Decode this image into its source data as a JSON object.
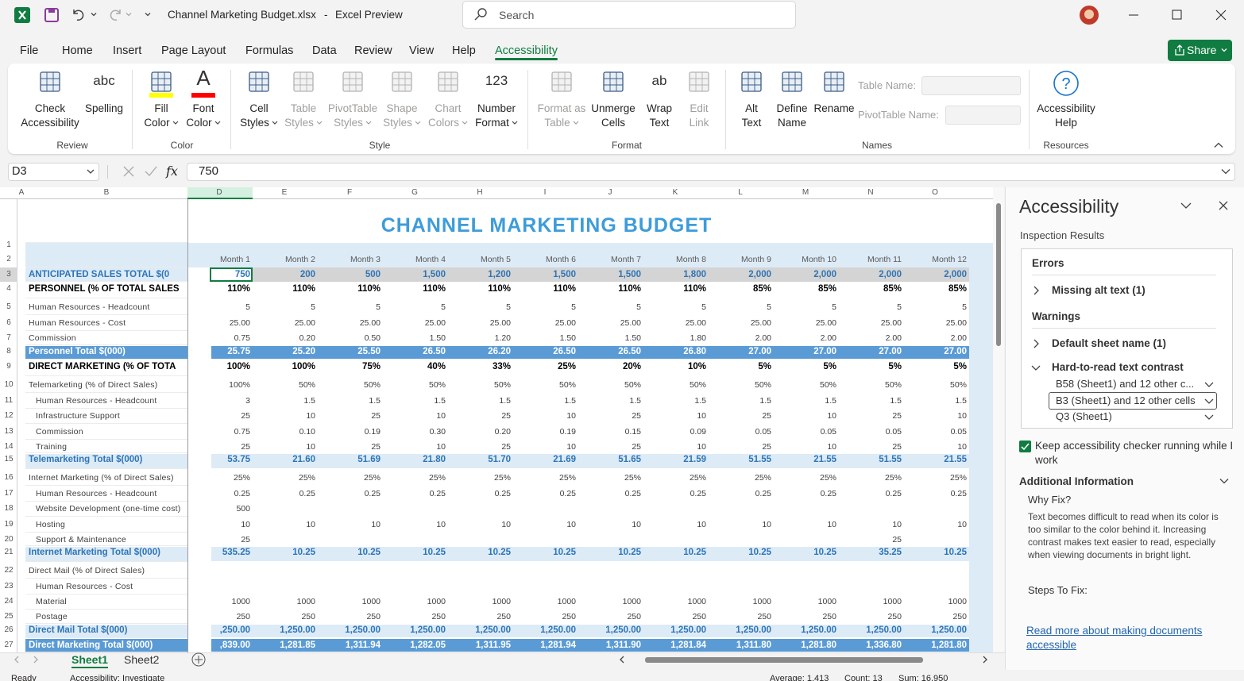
{
  "title_bar": {
    "file_name": "Channel Marketing Budget.xlsx",
    "separator": "-",
    "app_name": "Excel Preview",
    "search": "Search"
  },
  "menu": {
    "tabs": [
      "File",
      "Home",
      "Insert",
      "Page Layout",
      "Formulas",
      "Data",
      "Review",
      "View",
      "Help",
      "Accessibility"
    ],
    "active": 9,
    "share": "Share"
  },
  "ribbon": {
    "groups": [
      {
        "label": "Review",
        "buttons": [
          {
            "lines": [
              "Check",
              "Accessibility"
            ]
          },
          {
            "lines": [
              "Spelling"
            ],
            "icon_text": "abc"
          }
        ]
      },
      {
        "label": "Color",
        "buttons": [
          {
            "lines": [
              "Fill",
              "Color"
            ],
            "menu": true,
            "accent": "#ffff00"
          },
          {
            "lines": [
              "Font",
              "Color"
            ],
            "menu": true,
            "accent": "#ff0000",
            "icon_text": "A"
          }
        ]
      },
      {
        "label": "Style",
        "buttons": [
          {
            "lines": [
              "Cell",
              "Styles"
            ],
            "menu": true
          },
          {
            "lines": [
              "Table",
              "Styles"
            ],
            "menu": true,
            "disabled": true
          },
          {
            "lines": [
              "PivotTable",
              "Styles"
            ],
            "menu": true,
            "disabled": true
          },
          {
            "lines": [
              "Shape",
              "Styles"
            ],
            "menu": true,
            "disabled": true
          },
          {
            "lines": [
              "Chart",
              "Colors"
            ],
            "menu": true,
            "disabled": true
          },
          {
            "lines": [
              "Number",
              "Format"
            ],
            "menu": true,
            "icon_text": "123"
          }
        ]
      },
      {
        "label": "Format",
        "buttons": [
          {
            "lines": [
              "Format as",
              "Table"
            ],
            "menu": true,
            "disabled": true
          },
          {
            "lines": [
              "Unmerge",
              "Cells"
            ]
          },
          {
            "lines": [
              "Wrap",
              "Text"
            ],
            "icon_text": "ab"
          },
          {
            "lines": [
              "Edit",
              "Link"
            ],
            "disabled": true
          }
        ]
      },
      {
        "label": "Names",
        "buttons": [
          {
            "lines": [
              "Alt",
              "Text"
            ]
          },
          {
            "lines": [
              "Define",
              "Name"
            ]
          },
          {
            "lines": [
              "Rename"
            ]
          }
        ],
        "fields": [
          {
            "label": "Table Name:"
          },
          {
            "label": "PivotTable Name:"
          }
        ]
      },
      {
        "label": "Resources",
        "buttons": [
          {
            "lines": [
              "Accessibility",
              "Help"
            ],
            "icon_text": "?"
          }
        ]
      }
    ]
  },
  "formula_bar": {
    "name_box": "D3",
    "function_label": "fx",
    "formula": "750"
  },
  "sheet": {
    "column_headers": [
      "A",
      "B",
      "D",
      "E",
      "F",
      "G",
      "H",
      "I",
      "J",
      "K",
      "L",
      "M",
      "N",
      "O"
    ],
    "title": "CHANNEL MARKETING BUDGET",
    "rows": [
      {
        "n": 1,
        "style": "title",
        "label": null,
        "cells": []
      },
      {
        "n": 2,
        "style": "header",
        "label": null,
        "cells": [
          "Month 1",
          "Month 2",
          "Month 3",
          "Month 4",
          "Month 5",
          "Month 6",
          "Month 7",
          "Month 8",
          "Month 9",
          "Month 10",
          "Month 11",
          "Month 12"
        ]
      },
      {
        "n": 3,
        "style": "sales",
        "label": "ANTICIPATED SALES TOTAL $(0",
        "cells": [
          "750",
          "200",
          "500",
          "1,500",
          "1,200",
          "1,500",
          "1,500",
          "1,800",
          "2,000",
          "2,000",
          "2,000",
          "2,000"
        ]
      },
      {
        "n": 4,
        "style": "section",
        "label": "PERSONNEL (% OF TOTAL SALES",
        "cells": [
          "110%",
          "110%",
          "110%",
          "110%",
          "110%",
          "110%",
          "110%",
          "110%",
          "85%",
          "85%",
          "85%",
          "85%"
        ]
      },
      {
        "n": 5,
        "style": "item",
        "label": "Human Resources - Headcount",
        "cells": [
          "5",
          "5",
          "5",
          "5",
          "5",
          "5",
          "5",
          "5",
          "5",
          "5",
          "5",
          "5"
        ]
      },
      {
        "n": 6,
        "style": "item",
        "label": "Human Resources - Cost",
        "cells": [
          "25.00",
          "25.00",
          "25.00",
          "25.00",
          "25.00",
          "25.00",
          "25.00",
          "25.00",
          "25.00",
          "25.00",
          "25.00",
          "25.00"
        ]
      },
      {
        "n": 7,
        "style": "item",
        "label": "Commission",
        "cells": [
          "0.75",
          "0.20",
          "0.50",
          "1.50",
          "1.20",
          "1.50",
          "1.50",
          "1.80",
          "2.00",
          "2.00",
          "2.00",
          "2.00"
        ]
      },
      {
        "n": 8,
        "style": "total-dark",
        "label": "Personnel Total $(000)",
        "cells": [
          "25.75",
          "25.20",
          "25.50",
          "26.50",
          "26.20",
          "26.50",
          "26.50",
          "26.80",
          "27.00",
          "27.00",
          "27.00",
          "27.00"
        ]
      },
      {
        "n": 9,
        "style": "section",
        "label": "DIRECT MARKETING (% OF TOTA",
        "cells": [
          "100%",
          "100%",
          "75%",
          "40%",
          "33%",
          "25%",
          "20%",
          "10%",
          "5%",
          "5%",
          "5%",
          "5%"
        ]
      },
      {
        "n": 10,
        "style": "item",
        "label": "Telemarketing (% of Direct Sales)",
        "cells": [
          "100%",
          "50%",
          "50%",
          "50%",
          "50%",
          "50%",
          "50%",
          "50%",
          "50%",
          "50%",
          "50%",
          "50%"
        ]
      },
      {
        "n": 11,
        "style": "subitem",
        "label": "Human Resources - Headcount",
        "cells": [
          "3",
          "1.5",
          "1.5",
          "1.5",
          "1.5",
          "1.5",
          "1.5",
          "1.5",
          "1.5",
          "1.5",
          "1.5",
          "1.5"
        ]
      },
      {
        "n": 12,
        "style": "subitem",
        "label": "Infrastructure Support",
        "cells": [
          "25",
          "10",
          "25",
          "10",
          "25",
          "10",
          "25",
          "10",
          "25",
          "10",
          "25",
          "10"
        ]
      },
      {
        "n": 13,
        "style": "subitem",
        "label": "Commission",
        "cells": [
          "0.75",
          "0.10",
          "0.19",
          "0.30",
          "0.20",
          "0.19",
          "0.15",
          "0.09",
          "0.05",
          "0.05",
          "0.05",
          "0.05"
        ]
      },
      {
        "n": 14,
        "style": "subitem",
        "label": "Training",
        "cells": [
          "25",
          "10",
          "25",
          "10",
          "25",
          "10",
          "25",
          "10",
          "25",
          "10",
          "25",
          "10"
        ]
      },
      {
        "n": 15,
        "style": "total-light",
        "label": "Telemarketing Total $(000)",
        "cells": [
          "53.75",
          "21.60",
          "51.69",
          "21.80",
          "51.70",
          "21.69",
          "51.65",
          "21.59",
          "51.55",
          "21.55",
          "51.55",
          "21.55"
        ]
      },
      {
        "n": 16,
        "style": "item",
        "label": "Internet Marketing (% of Direct Sales)",
        "cells": [
          "25%",
          "25%",
          "25%",
          "25%",
          "25%",
          "25%",
          "25%",
          "25%",
          "25%",
          "25%",
          "25%",
          "25%"
        ]
      },
      {
        "n": 17,
        "style": "subitem",
        "label": "Human Resources - Headcount",
        "cells": [
          "0.25",
          "0.25",
          "0.25",
          "0.25",
          "0.25",
          "0.25",
          "0.25",
          "0.25",
          "0.25",
          "0.25",
          "0.25",
          "0.25"
        ]
      },
      {
        "n": 18,
        "style": "subitem",
        "label": "Website Development (one-time cost)",
        "cells": [
          "500",
          null,
          null,
          null,
          null,
          null,
          null,
          null,
          null,
          null,
          null,
          null
        ]
      },
      {
        "n": 19,
        "style": "subitem",
        "label": "Hosting",
        "cells": [
          "10",
          "10",
          "10",
          "10",
          "10",
          "10",
          "10",
          "10",
          "10",
          "10",
          "10",
          "10"
        ]
      },
      {
        "n": 20,
        "style": "subitem",
        "label": "Support & Maintenance",
        "cells": [
          "25",
          null,
          null,
          null,
          null,
          null,
          null,
          null,
          null,
          null,
          "25",
          null
        ]
      },
      {
        "n": 21,
        "style": "total-light",
        "label": "Internet Marketing Total $(000)",
        "cells": [
          "535.25",
          "10.25",
          "10.25",
          "10.25",
          "10.25",
          "10.25",
          "10.25",
          "10.25",
          "10.25",
          "10.25",
          "35.25",
          "10.25"
        ]
      },
      {
        "n": 22,
        "style": "item",
        "label": "Direct Mail (% of Direct Sales)",
        "cells": []
      },
      {
        "n": 23,
        "style": "subitem",
        "label": "Human Resources - Cost",
        "cells": []
      },
      {
        "n": 24,
        "style": "subitem",
        "label": "Material",
        "cells": [
          "1000",
          "1000",
          "1000",
          "1000",
          "1000",
          "1000",
          "1000",
          "1000",
          "1000",
          "1000",
          "1000",
          "1000"
        ]
      },
      {
        "n": 25,
        "style": "subitem",
        "label": "Postage",
        "cells": [
          "250",
          "250",
          "250",
          "250",
          "250",
          "250",
          "250",
          "250",
          "250",
          "250",
          "250",
          "250"
        ]
      },
      {
        "n": 26,
        "style": "total-light",
        "label": "Direct Mail Total $(000)",
        "cells": [
          ",250.00",
          "1,250.00",
          "1,250.00",
          "1,250.00",
          "1,250.00",
          "1,250.00",
          "1,250.00",
          "1,250.00",
          "1,250.00",
          "1,250.00",
          "1,250.00",
          "1,250.00"
        ]
      },
      {
        "n": 27,
        "style": "total-dark",
        "label": "Direct Marketing Total $(000)",
        "cells": [
          ",839.00",
          "1,281.85",
          "1,311.94",
          "1,282.05",
          "1,311.95",
          "1,281.94",
          "1,311.90",
          "1,281.84",
          "1,311.80",
          "1,281.80",
          "1,336.80",
          "1,281.80"
        ]
      }
    ],
    "tabs": [
      "Sheet1",
      "Sheet2"
    ],
    "active_tab": 0
  },
  "status": {
    "ready": "Ready",
    "accessibility": "Accessibility: Investigate",
    "average": "Average: 1,413",
    "count": "Count: 13",
    "sum": "Sum: 16,950"
  },
  "pane": {
    "title": "Accessibility",
    "subtitle": "Inspection Results",
    "groups": [
      {
        "heading": "Errors",
        "items": [
          {
            "text": "Missing alt text (1)",
            "expanded": false
          }
        ]
      },
      {
        "heading": "Warnings",
        "items": [
          {
            "text": "Default sheet name (1)",
            "expanded": false
          },
          {
            "text": "Hard-to-read text contrast",
            "expanded": true,
            "children": [
              "B58 (Sheet1) and 12 other c...",
              "B3 (Sheet1) and 12 other cells",
              "Q3 (Sheet1)"
            ],
            "selected_child": 1
          }
        ]
      }
    ],
    "keep_running": {
      "text": "Keep accessibility checker running while I work",
      "checked": true
    },
    "additional_heading": "Additional Information",
    "why_fix": "Why Fix?",
    "why_text": "Text becomes difficult to read when its color is too similar to the color behind it. Increasing contrast makes text easier to read, especially when viewing documents in bright light.",
    "steps": "Steps To Fix:",
    "link": "Read more about making documents accessible"
  }
}
